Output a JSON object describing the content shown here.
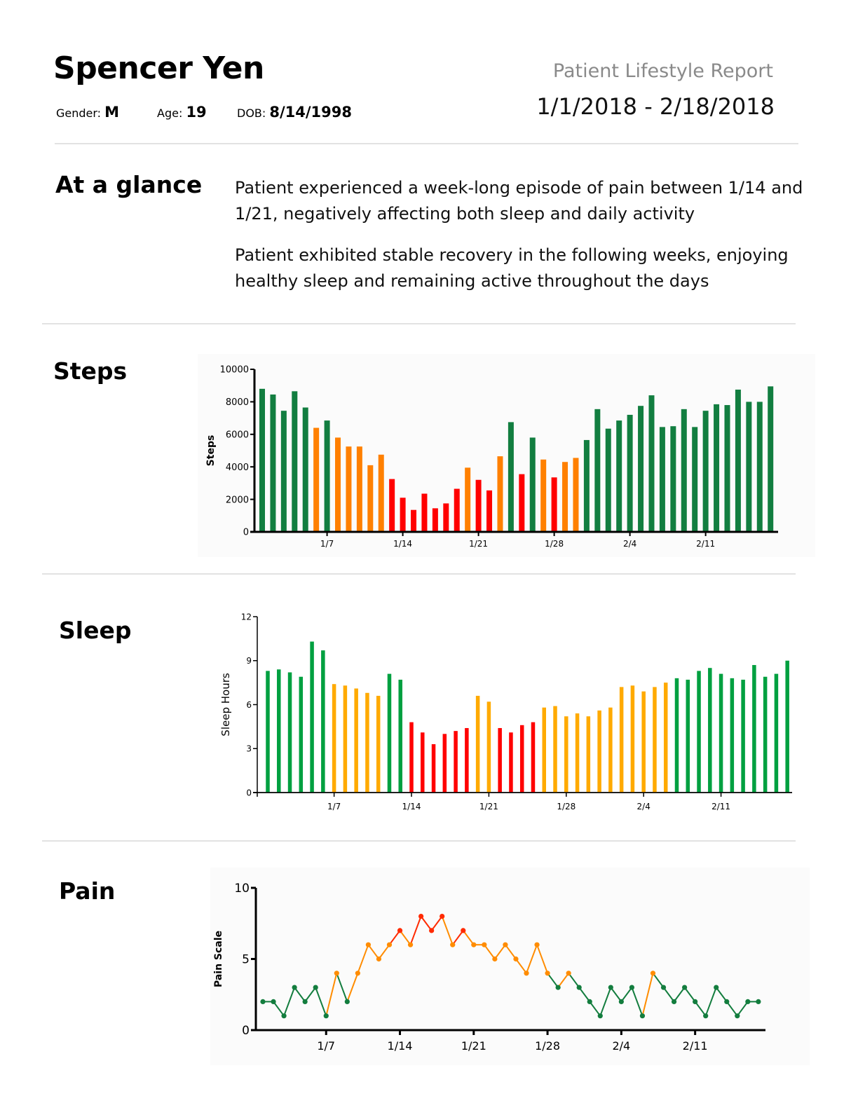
{
  "header": {
    "patient_name": "Spencer Yen",
    "gender_label": "Gender:",
    "gender": "M",
    "age_label": "Age:",
    "age": "19",
    "dob_label": "DOB:",
    "dob": "8/14/1998",
    "report_title": "Patient Lifestyle Report",
    "date_range": "1/1/2018 - 2/18/2018"
  },
  "glance": {
    "title": "At a glance",
    "paragraphs": [
      "Patient experienced a week-long episode of pain between 1/14 and 1/21, negatively affecting both sleep and daily activity",
      "Patient exhibited stable recovery in the following weeks, enjoying healthy sleep and remaining active throughout the days"
    ]
  },
  "sections": {
    "steps_title": "Steps",
    "sleep_title": "Sleep",
    "pain_title": "Pain"
  },
  "chart_data": [
    {
      "id": "steps",
      "type": "bar",
      "title": "Steps",
      "xlabel": "",
      "ylabel": "Steps",
      "ylim": [
        0,
        10000
      ],
      "yticks": [
        0,
        2000,
        4000,
        6000,
        8000,
        10000
      ],
      "xticks": [
        {
          "day": 7,
          "label": "1/7"
        },
        {
          "day": 14,
          "label": "1/14"
        },
        {
          "day": 21,
          "label": "1/21"
        },
        {
          "day": 28,
          "label": "1/28"
        },
        {
          "day": 35,
          "label": "2/4"
        },
        {
          "day": 42,
          "label": "2/11"
        }
      ],
      "colors": {
        "good": "#127e40",
        "moderate": "#ff8000",
        "poor": "#ff0000"
      },
      "values": [
        8800,
        8450,
        7450,
        8650,
        7650,
        6400,
        6850,
        5800,
        5250,
        5250,
        4100,
        4750,
        3250,
        2100,
        1350,
        2350,
        1450,
        1750,
        2650,
        3950,
        3200,
        2550,
        4650,
        6750,
        3550,
        5800,
        4450,
        3350,
        4300,
        4550,
        5650,
        7550,
        6350,
        6850,
        7200,
        7750,
        8400,
        6450,
        6500,
        7550,
        6450,
        7450,
        7850,
        7800,
        8750,
        8000,
        8000,
        8950
      ],
      "status": [
        "good",
        "good",
        "good",
        "good",
        "good",
        "moderate",
        "good",
        "moderate",
        "moderate",
        "moderate",
        "moderate",
        "moderate",
        "poor",
        "poor",
        "poor",
        "poor",
        "poor",
        "poor",
        "poor",
        "moderate",
        "poor",
        "poor",
        "moderate",
        "good",
        "poor",
        "good",
        "moderate",
        "poor",
        "moderate",
        "moderate",
        "good",
        "good",
        "good",
        "good",
        "good",
        "good",
        "good",
        "good",
        "good",
        "good",
        "good",
        "good",
        "good",
        "good",
        "good",
        "good",
        "good",
        "good"
      ]
    },
    {
      "id": "sleep",
      "type": "bar",
      "title": "Sleep",
      "xlabel": "",
      "ylabel": "Sleep Hours",
      "ylim": [
        0,
        12
      ],
      "yticks": [
        0,
        3,
        6,
        9,
        12
      ],
      "xticks": [
        {
          "day": 7,
          "label": "1/7"
        },
        {
          "day": 14,
          "label": "1/14"
        },
        {
          "day": 21,
          "label": "1/21"
        },
        {
          "day": 28,
          "label": "1/28"
        },
        {
          "day": 35,
          "label": "2/4"
        },
        {
          "day": 42,
          "label": "2/11"
        }
      ],
      "colors": {
        "good": "#00a040",
        "moderate": "#ffaa00",
        "poor": "#ff0000"
      },
      "values": [
        8.3,
        8.4,
        8.2,
        7.9,
        10.3,
        9.7,
        7.4,
        7.3,
        7.1,
        6.8,
        6.6,
        8.1,
        7.7,
        4.8,
        4.1,
        3.3,
        4.0,
        4.2,
        4.4,
        6.6,
        6.2,
        4.4,
        4.1,
        4.6,
        4.8,
        5.8,
        5.9,
        5.2,
        5.4,
        5.2,
        5.6,
        5.8,
        7.2,
        7.3,
        6.9,
        7.2,
        7.5,
        7.8,
        7.7,
        8.3,
        8.5,
        8.1,
        7.8,
        7.7,
        8.7,
        7.9,
        8.1,
        9.0
      ],
      "status": [
        "good",
        "good",
        "good",
        "good",
        "good",
        "good",
        "moderate",
        "moderate",
        "moderate",
        "moderate",
        "moderate",
        "good",
        "good",
        "poor",
        "poor",
        "poor",
        "poor",
        "poor",
        "poor",
        "moderate",
        "moderate",
        "poor",
        "poor",
        "poor",
        "poor",
        "moderate",
        "moderate",
        "moderate",
        "moderate",
        "moderate",
        "moderate",
        "moderate",
        "moderate",
        "moderate",
        "moderate",
        "moderate",
        "moderate",
        "good",
        "good",
        "good",
        "good",
        "good",
        "good",
        "good",
        "good",
        "good",
        "good",
        "good"
      ]
    },
    {
      "id": "pain",
      "type": "line",
      "title": "Pain",
      "xlabel": "",
      "ylabel": "Pain Scale",
      "ylim": [
        0,
        10
      ],
      "yticks": [
        0,
        5,
        10
      ],
      "xticks": [
        {
          "day": 7,
          "label": "1/7"
        },
        {
          "day": 14,
          "label": "1/14"
        },
        {
          "day": 21,
          "label": "1/21"
        },
        {
          "day": 28,
          "label": "1/28"
        },
        {
          "day": 35,
          "label": "2/4"
        },
        {
          "day": 42,
          "label": "2/11"
        }
      ],
      "colors": {
        "low": "#137d3e",
        "moderate": "#ff8c00",
        "high": "#ff2a00"
      },
      "thresholds": {
        "low_max": 3,
        "moderate_max": 6
      },
      "values": [
        2,
        2,
        1,
        3,
        2,
        3,
        1,
        4,
        2,
        4,
        6,
        5,
        6,
        7,
        6,
        8,
        7,
        8,
        6,
        7,
        6,
        6,
        5,
        6,
        5,
        4,
        6,
        4,
        3,
        4,
        3,
        2,
        1,
        3,
        2,
        3,
        1,
        4,
        3,
        2,
        3,
        2,
        1,
        3,
        2,
        1,
        2,
        2
      ]
    }
  ]
}
